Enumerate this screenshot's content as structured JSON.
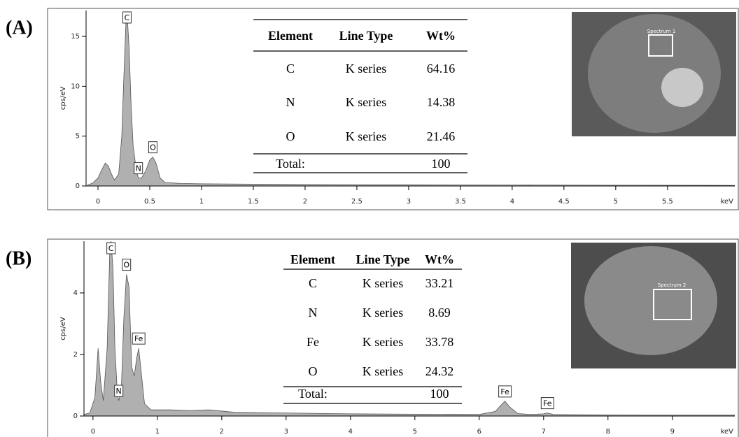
{
  "chart_data": [
    {
      "type": "area",
      "panel_label": "(A)",
      "ylabel": "cps/eV",
      "xlabel": "keV",
      "color": "#b0b0b0",
      "x": [
        -0.1,
        -0.05,
        0,
        0.04,
        0.07,
        0.1,
        0.13,
        0.16,
        0.2,
        0.23,
        0.25,
        0.27,
        0.28,
        0.3,
        0.32,
        0.34,
        0.37,
        0.39,
        0.42,
        0.46,
        0.5,
        0.53,
        0.56,
        0.6,
        0.65,
        0.8,
        1,
        1.5,
        2,
        3,
        4,
        5,
        6.15
      ],
      "values": [
        0.1,
        0.3,
        0.8,
        1.7,
        2.3,
        2,
        1.2,
        0.6,
        1.2,
        5,
        11,
        16.5,
        17.5,
        14,
        8,
        4,
        1.6,
        0.8,
        0.8,
        1.5,
        2.6,
        2.9,
        2.3,
        0.8,
        0.35,
        0.25,
        0.22,
        0.18,
        0.15,
        0.12,
        0.1,
        0.08,
        0.06
      ],
      "xlim": [
        -0.115,
        6.15
      ],
      "xticks": [
        0,
        0.5,
        1,
        1.5,
        2,
        2.5,
        3,
        3.5,
        4,
        4.5,
        5,
        5.5
      ],
      "ylim": [
        0,
        17.6
      ],
      "yticks": [
        0,
        5,
        10,
        15
      ],
      "annotations": [
        {
          "text": "C",
          "x": 0.28
        },
        {
          "text": "N",
          "x": 0.39
        },
        {
          "text": "O",
          "x": 0.53
        }
      ],
      "table": {
        "header": [
          "Element",
          "Line Type",
          "Wt%"
        ],
        "rows": [
          [
            "C",
            "K series",
            "64.16"
          ],
          [
            "N",
            "K series",
            "14.38"
          ],
          [
            "O",
            "K series",
            "21.46"
          ]
        ],
        "total": [
          "Total:",
          "100"
        ]
      },
      "image_label": "Spectrum 1"
    },
    {
      "type": "area",
      "panel_label": "(B)",
      "ylabel": "cps/eV",
      "xlabel": "keV",
      "color": "#b0b0b0",
      "x": [
        -0.14,
        -0.05,
        0.03,
        0.08,
        0.12,
        0.16,
        0.22,
        0.26,
        0.28,
        0.31,
        0.34,
        0.38,
        0.4,
        0.44,
        0.48,
        0.52,
        0.56,
        0.6,
        0.64,
        0.68,
        0.71,
        0.75,
        0.8,
        0.9,
        1.2,
        1.5,
        1.8,
        2.2,
        3,
        4,
        5,
        6,
        6.25,
        6.35,
        6.4,
        6.47,
        6.6,
        6.8,
        7.0,
        7.06,
        7.15,
        7.5,
        8.5,
        9.97
      ],
      "values": [
        0.05,
        0.1,
        0.6,
        2.2,
        1.1,
        0.5,
        2.2,
        5.3,
        5.7,
        4.8,
        2.2,
        0.7,
        0.5,
        0.9,
        3.2,
        4.6,
        4.2,
        1.6,
        1.3,
        1.9,
        2.2,
        1.4,
        0.4,
        0.2,
        0.2,
        0.18,
        0.2,
        0.12,
        0.1,
        0.07,
        0.06,
        0.05,
        0.15,
        0.38,
        0.48,
        0.3,
        0.08,
        0.05,
        0.07,
        0.1,
        0.05,
        0.04,
        0.03,
        0.03
      ],
      "xlim": [
        -0.14,
        9.97
      ],
      "xticks": [
        0,
        1,
        2,
        3,
        4,
        5,
        6,
        7,
        8,
        9
      ],
      "ylim": [
        0,
        5.68
      ],
      "yticks": [
        0,
        2,
        4
      ],
      "annotations": [
        {
          "text": "C",
          "x": 0.28
        },
        {
          "text": "N",
          "x": 0.4
        },
        {
          "text": "O",
          "x": 0.52
        },
        {
          "text": "Fe",
          "x": 0.71
        },
        {
          "text": "Fe",
          "x": 6.4
        },
        {
          "text": "Fe",
          "x": 7.06
        }
      ],
      "table": {
        "header": [
          "Element",
          "Line Type",
          "Wt%"
        ],
        "rows": [
          [
            "C",
            "K series",
            "33.21"
          ],
          [
            "N",
            "K series",
            "8.69"
          ],
          [
            "Fe",
            "K series",
            "33.78"
          ],
          [
            "O",
            "K series",
            "24.32"
          ]
        ],
        "total": [
          "Total:",
          "100"
        ]
      },
      "image_label": "Spectrum 2"
    }
  ]
}
